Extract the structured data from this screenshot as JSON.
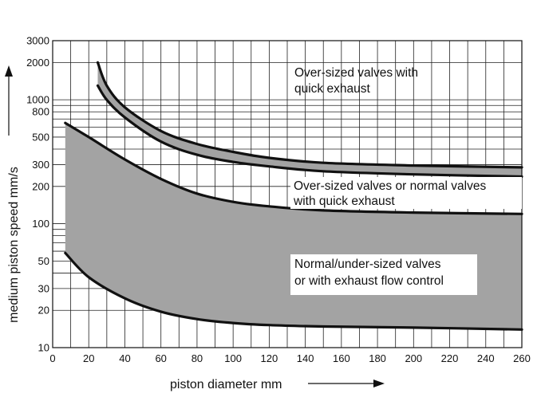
{
  "chart_data": {
    "type": "area",
    "title": "",
    "xlabel": "piston diameter  mm",
    "ylabel": "medium piston speed  mm/s",
    "x_scale": "linear",
    "y_scale": "log",
    "xlim": [
      0,
      260
    ],
    "ylim": [
      10,
      3000
    ],
    "grid": true,
    "x_ticks": [
      0,
      20,
      40,
      60,
      80,
      100,
      120,
      140,
      160,
      180,
      200,
      220,
      240,
      260
    ],
    "x_tick_labels": [
      "0",
      "20",
      "40",
      "60",
      "80",
      "100",
      "120",
      "140",
      "160",
      "180",
      "200",
      "220",
      "240",
      "260"
    ],
    "y_ticks": [
      10,
      20,
      30,
      50,
      100,
      200,
      300,
      500,
      800,
      1000,
      2000,
      3000
    ],
    "y_tick_labels": [
      "10",
      "20",
      "30",
      "50",
      "100",
      "200",
      "300",
      "500",
      "800",
      "1000",
      "2000",
      "3000"
    ],
    "y_gridlines": [
      10,
      20,
      30,
      40,
      50,
      60,
      70,
      80,
      90,
      100,
      200,
      300,
      400,
      500,
      600,
      700,
      800,
      900,
      1000,
      2000,
      3000
    ],
    "bands": [
      {
        "id": "band-quick-exhaust",
        "fill": "#a3a3a3",
        "upper": [
          [
            25,
            2000
          ],
          [
            30,
            1300
          ],
          [
            40,
            870
          ],
          [
            60,
            560
          ],
          [
            80,
            440
          ],
          [
            100,
            380
          ],
          [
            120,
            340
          ],
          [
            150,
            310
          ],
          [
            200,
            295
          ],
          [
            260,
            285
          ]
        ],
        "lower": [
          [
            25,
            1300
          ],
          [
            30,
            1000
          ],
          [
            40,
            720
          ],
          [
            60,
            460
          ],
          [
            80,
            360
          ],
          [
            100,
            315
          ],
          [
            120,
            290
          ],
          [
            150,
            265
          ],
          [
            200,
            250
          ],
          [
            260,
            240
          ]
        ]
      },
      {
        "id": "band-normal",
        "fill": "#a3a3a3",
        "upper": [
          [
            7,
            650
          ],
          [
            20,
            500
          ],
          [
            40,
            330
          ],
          [
            60,
            230
          ],
          [
            80,
            175
          ],
          [
            100,
            150
          ],
          [
            120,
            138
          ],
          [
            150,
            128
          ],
          [
            200,
            123
          ],
          [
            260,
            120
          ]
        ],
        "lower": [
          [
            7,
            58
          ],
          [
            20,
            37
          ],
          [
            40,
            25
          ],
          [
            60,
            19.5
          ],
          [
            80,
            17
          ],
          [
            100,
            15.8
          ],
          [
            120,
            15.2
          ],
          [
            150,
            14.8
          ],
          [
            200,
            14.5
          ],
          [
            260,
            14
          ]
        ]
      }
    ],
    "annotations": [
      {
        "id": "label-oversized-quick",
        "lines": [
          "Over-sized valves with",
          "quick exhaust"
        ],
        "boxed": false
      },
      {
        "id": "label-oversized-or-normal",
        "lines": [
          "Over-sized valves or normal valves",
          "with quick exhaust"
        ],
        "boxed": true
      },
      {
        "id": "label-normal-undersized",
        "lines": [
          "Normal/under-sized valves",
          "or with exhaust flow control"
        ],
        "boxed": true
      }
    ]
  }
}
